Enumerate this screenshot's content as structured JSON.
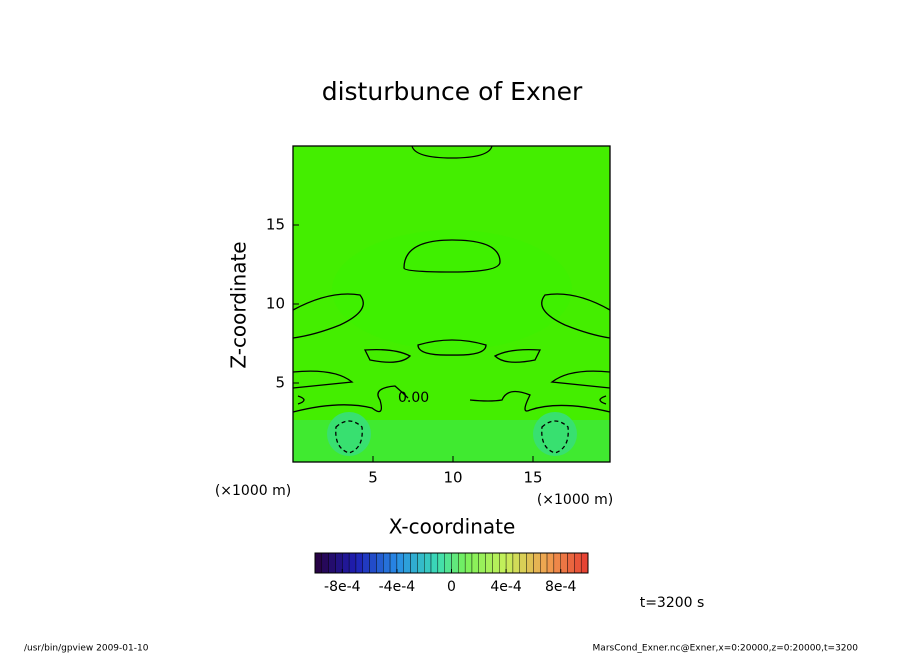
{
  "chart_data": {
    "type": "contour",
    "title": "disturbunce of Exner",
    "xlabel": "X-coordinate",
    "ylabel": "Z-coordinate",
    "x_unit": "(×1000 m)",
    "y_unit": "(×1000 m)",
    "xlim": [
      0,
      20
    ],
    "ylim": [
      0,
      20
    ],
    "xticks": [
      5,
      10,
      15
    ],
    "yticks": [
      5,
      10,
      15
    ],
    "contour_labels": [
      {
        "value": 0,
        "label": "0.00"
      }
    ],
    "colorbar": {
      "clim": [
        -0.001,
        0.001
      ],
      "ticks": [
        {
          "value": -0.0008,
          "label": "-8e-4"
        },
        {
          "value": -0.0004,
          "label": "-4e-4"
        },
        0,
        {
          "value": 0.0004,
          "label": "4e-4"
        },
        {
          "value": 0.0008,
          "label": "8e-4"
        }
      ]
    },
    "time_label": "t=3200 s",
    "footer_left": "/usr/bin/gpview  2009-01-10",
    "footer_right": "MarsCond_Exner.nc@Exner,x=0:20000,z=0:20000,t=3200"
  }
}
